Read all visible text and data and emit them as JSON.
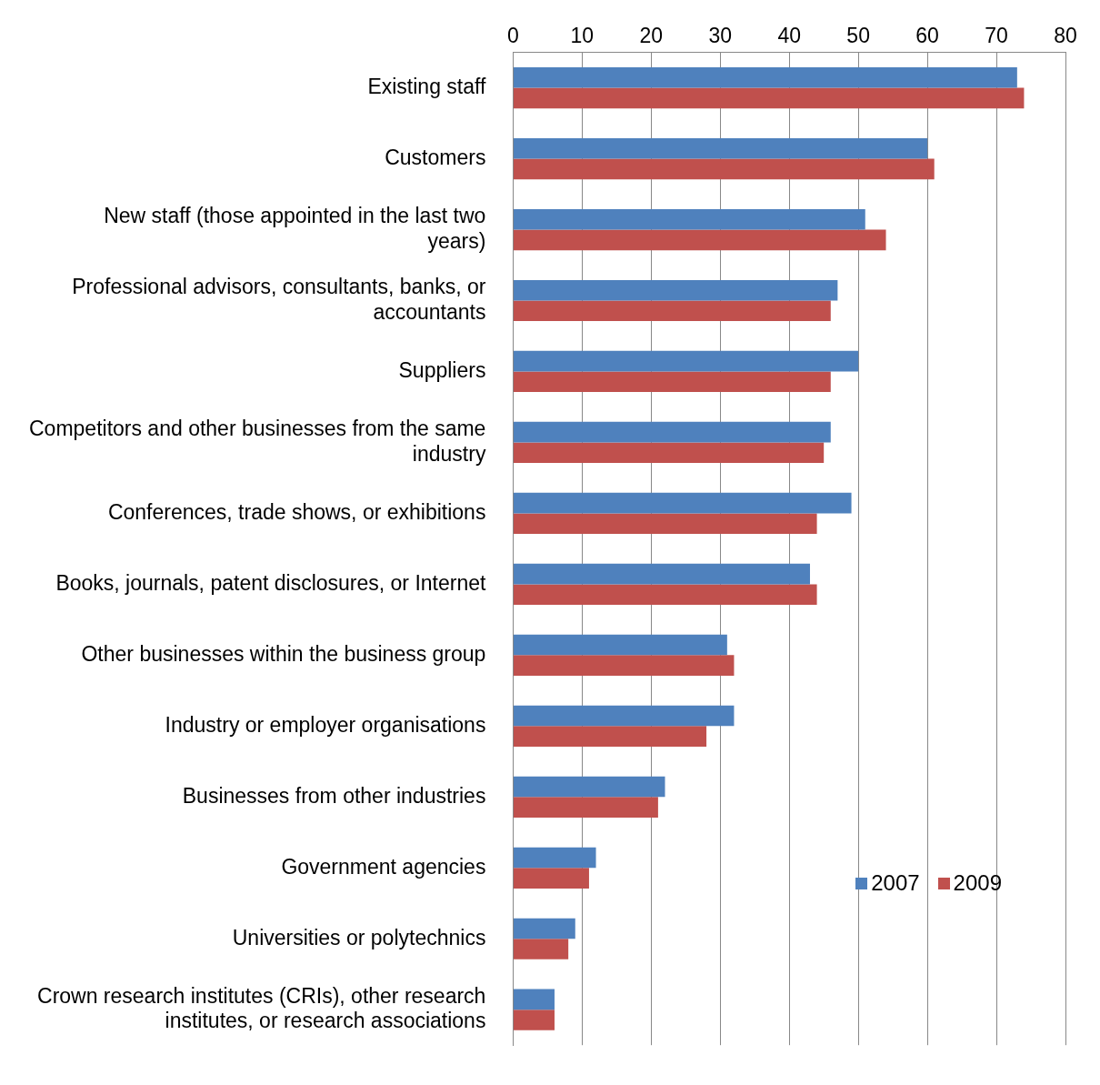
{
  "chart_data": {
    "type": "bar",
    "orientation": "horizontal",
    "categories": [
      "Existing staff",
      "Customers",
      "New staff (those appointed in the last two years)",
      "Professional advisors, consultants, banks, or accountants",
      "Suppliers",
      "Competitors and other businesses from the same industry",
      "Conferences, trade shows, or exhibitions",
      "Books, journals, patent disclosures, or Internet",
      "Other businesses within the business group",
      "Industry or employer organisations",
      "Businesses from other industries",
      "Government agencies",
      "Universities or polytechnics",
      "Crown research institutes (CRIs), other research institutes, or research associations"
    ],
    "series": [
      {
        "name": "2007",
        "color": "#4f81bd",
        "values": [
          73,
          60,
          51,
          47,
          50,
          46,
          49,
          43,
          31,
          32,
          22,
          12,
          9,
          6
        ]
      },
      {
        "name": "2009",
        "color": "#c0504d",
        "values": [
          74,
          61,
          54,
          46,
          46,
          45,
          44,
          44,
          32,
          28,
          21,
          11,
          8,
          6
        ]
      }
    ],
    "xlim": [
      0,
      80
    ],
    "xticks": [
      0,
      10,
      20,
      30,
      40,
      50,
      60,
      70,
      80
    ],
    "grid": "x",
    "legend": "bottom right"
  }
}
